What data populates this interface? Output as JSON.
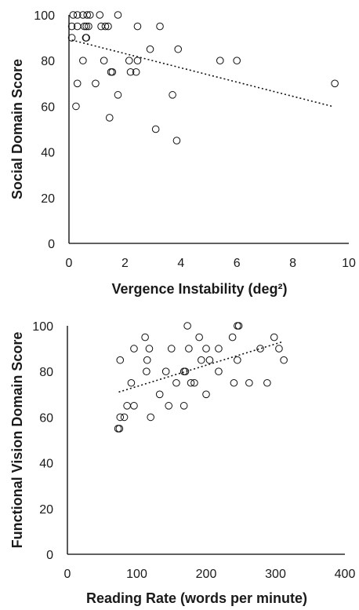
{
  "chart_data": [
    {
      "type": "scatter",
      "xlabel": "Vergence Instability (deg²)",
      "ylabel": "Social Domain Score",
      "xlim": [
        0,
        10
      ],
      "ylim": [
        0,
        100
      ],
      "xticks": [
        "0",
        "2",
        "4",
        "6",
        "8",
        "10"
      ],
      "yticks": [
        "0",
        "20",
        "40",
        "60",
        "80",
        "100"
      ],
      "grid": false,
      "marker": "open-circle",
      "trendline": {
        "style": "dotted",
        "x": [
          0.1,
          9.4
        ],
        "y": [
          89,
          60
        ]
      },
      "points": [
        {
          "x": 0.15,
          "y": 100
        },
        {
          "x": 0.3,
          "y": 100
        },
        {
          "x": 0.5,
          "y": 100
        },
        {
          "x": 0.65,
          "y": 100
        },
        {
          "x": 0.75,
          "y": 100
        },
        {
          "x": 1.1,
          "y": 100
        },
        {
          "x": 1.75,
          "y": 100
        },
        {
          "x": 0.1,
          "y": 95
        },
        {
          "x": 0.3,
          "y": 95
        },
        {
          "x": 0.55,
          "y": 95
        },
        {
          "x": 0.62,
          "y": 95
        },
        {
          "x": 0.7,
          "y": 95
        },
        {
          "x": 1.15,
          "y": 95
        },
        {
          "x": 1.3,
          "y": 95
        },
        {
          "x": 1.4,
          "y": 95
        },
        {
          "x": 2.45,
          "y": 95
        },
        {
          "x": 3.25,
          "y": 95
        },
        {
          "x": 0.1,
          "y": 90
        },
        {
          "x": 0.6,
          "y": 90
        },
        {
          "x": 0.62,
          "y": 90
        },
        {
          "x": 2.9,
          "y": 85
        },
        {
          "x": 3.9,
          "y": 85
        },
        {
          "x": 0.5,
          "y": 80
        },
        {
          "x": 1.25,
          "y": 80
        },
        {
          "x": 2.15,
          "y": 80
        },
        {
          "x": 2.45,
          "y": 80
        },
        {
          "x": 5.4,
          "y": 80
        },
        {
          "x": 6.0,
          "y": 80
        },
        {
          "x": 1.5,
          "y": 75
        },
        {
          "x": 1.55,
          "y": 75
        },
        {
          "x": 2.2,
          "y": 75
        },
        {
          "x": 2.4,
          "y": 75
        },
        {
          "x": 0.3,
          "y": 70
        },
        {
          "x": 0.95,
          "y": 70
        },
        {
          "x": 9.5,
          "y": 70
        },
        {
          "x": 1.75,
          "y": 65
        },
        {
          "x": 3.7,
          "y": 65
        },
        {
          "x": 0.25,
          "y": 60
        },
        {
          "x": 1.45,
          "y": 55
        },
        {
          "x": 3.1,
          "y": 50
        },
        {
          "x": 3.85,
          "y": 45
        }
      ]
    },
    {
      "type": "scatter",
      "xlabel": "Reading Rate (words per minute)",
      "ylabel": "Functional Vision Domain Score",
      "xlim": [
        0,
        400
      ],
      "ylim": [
        0,
        100
      ],
      "xticks": [
        "0",
        "100",
        "200",
        "300",
        "400"
      ],
      "yticks": [
        "0",
        "20",
        "40",
        "60",
        "80",
        "100"
      ],
      "grid": false,
      "marker": "open-circle",
      "trendline": {
        "style": "dotted",
        "x": [
          74,
          310
        ],
        "y": [
          71,
          93
        ]
      },
      "points": [
        {
          "x": 173,
          "y": 100
        },
        {
          "x": 245,
          "y": 100
        },
        {
          "x": 247,
          "y": 100
        },
        {
          "x": 112,
          "y": 95
        },
        {
          "x": 190,
          "y": 95
        },
        {
          "x": 238,
          "y": 95
        },
        {
          "x": 298,
          "y": 95
        },
        {
          "x": 96,
          "y": 90
        },
        {
          "x": 118,
          "y": 90
        },
        {
          "x": 150,
          "y": 90
        },
        {
          "x": 175,
          "y": 90
        },
        {
          "x": 200,
          "y": 90
        },
        {
          "x": 218,
          "y": 90
        },
        {
          "x": 278,
          "y": 90
        },
        {
          "x": 305,
          "y": 90
        },
        {
          "x": 76,
          "y": 85
        },
        {
          "x": 115,
          "y": 85
        },
        {
          "x": 193,
          "y": 85
        },
        {
          "x": 205,
          "y": 85
        },
        {
          "x": 245,
          "y": 85
        },
        {
          "x": 312,
          "y": 85
        },
        {
          "x": 114,
          "y": 80
        },
        {
          "x": 142,
          "y": 80
        },
        {
          "x": 168,
          "y": 80
        },
        {
          "x": 170,
          "y": 80
        },
        {
          "x": 218,
          "y": 80
        },
        {
          "x": 92,
          "y": 75
        },
        {
          "x": 157,
          "y": 75
        },
        {
          "x": 178,
          "y": 75
        },
        {
          "x": 183,
          "y": 75
        },
        {
          "x": 240,
          "y": 75
        },
        {
          "x": 262,
          "y": 75
        },
        {
          "x": 288,
          "y": 75
        },
        {
          "x": 133,
          "y": 70
        },
        {
          "x": 200,
          "y": 70
        },
        {
          "x": 86,
          "y": 65
        },
        {
          "x": 96,
          "y": 65
        },
        {
          "x": 146,
          "y": 65
        },
        {
          "x": 168,
          "y": 65
        },
        {
          "x": 76,
          "y": 60
        },
        {
          "x": 82,
          "y": 60
        },
        {
          "x": 120,
          "y": 60
        },
        {
          "x": 73,
          "y": 55
        },
        {
          "x": 75,
          "y": 55
        }
      ]
    }
  ]
}
